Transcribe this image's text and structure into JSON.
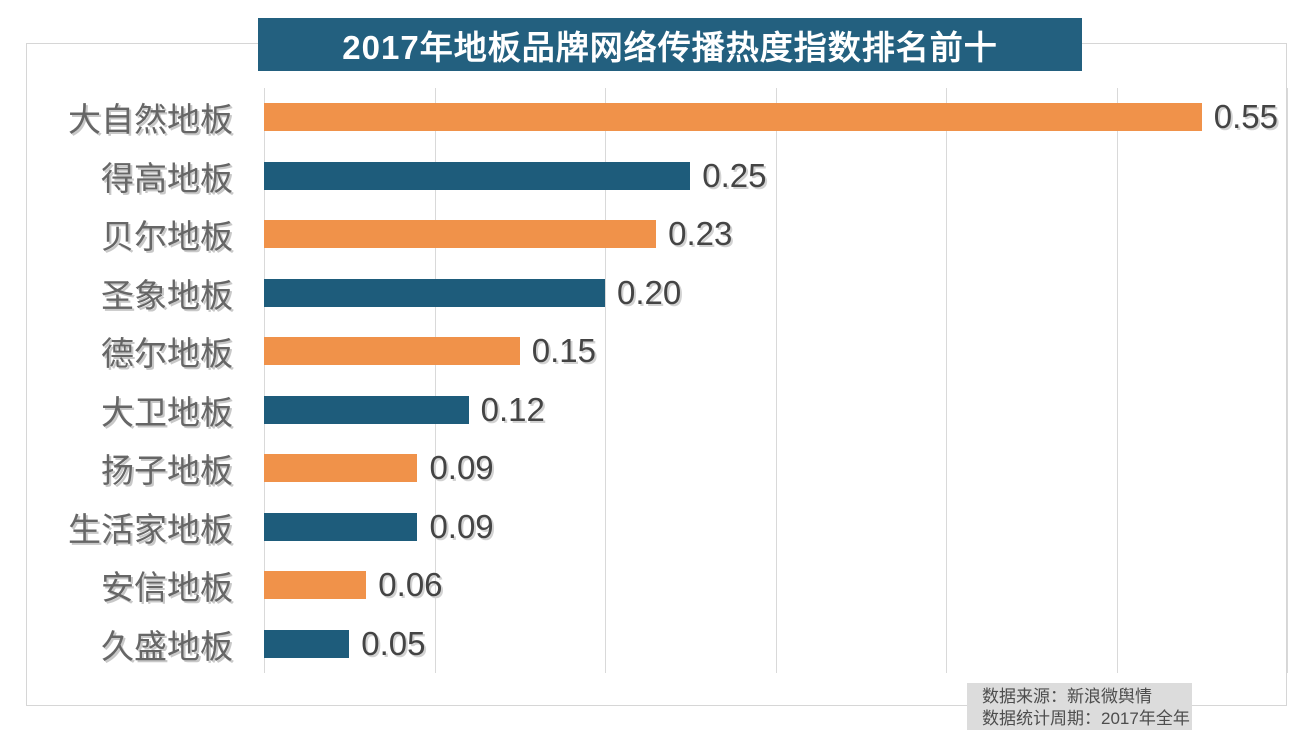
{
  "banner": {
    "title": "2017年地板品牌网络传播热度指数排名前十",
    "bg": "#23607F",
    "text_color": "#ffffff"
  },
  "chart_data": {
    "type": "bar",
    "orientation": "horizontal",
    "title": "2017年地板品牌网络传播热度指数排名前十",
    "categories": [
      "大自然地板",
      "得高地板",
      "贝尔地板",
      "圣象地板",
      "德尔地板",
      "大卫地板",
      "扬子地板",
      "生活家地板",
      "安信地板",
      "久盛地板"
    ],
    "values": [
      0.55,
      0.25,
      0.23,
      0.2,
      0.15,
      0.12,
      0.09,
      0.09,
      0.06,
      0.05
    ],
    "value_labels": [
      "0.55",
      "0.25",
      "0.23",
      "0.20",
      "0.15",
      "0.12",
      "0.09",
      "0.09",
      "0.06",
      "0.05"
    ],
    "xlim": [
      0,
      0.6
    ],
    "x_gridlines": [
      0,
      0.1,
      0.2,
      0.3,
      0.4,
      0.5,
      0.6
    ],
    "grid": "vertical-only",
    "legend": "none",
    "bar_color_alternating": [
      "#F0924A",
      "#1E5C7B"
    ]
  },
  "colors": {
    "grid": "#d9d9d9",
    "frame_border": "#d6d6d6",
    "category_label": "#666666",
    "value_label": "#444444",
    "footer_bg": "#dcdcdc",
    "footer_text": "#4d4d4d"
  },
  "footer": {
    "line1": "数据来源：新浪微舆情",
    "line2": "数据统计周期：2017年全年"
  }
}
